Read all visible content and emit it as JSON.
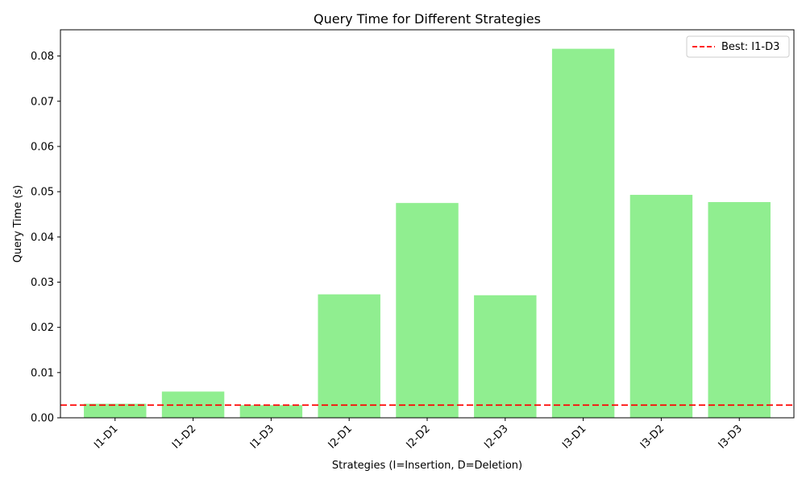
{
  "chart_data": {
    "type": "bar",
    "title": "Query Time for Different Strategies",
    "xlabel": "Strategies (I=Insertion, D=Deletion)",
    "ylabel": "Query Time (s)",
    "categories": [
      "I1-D1",
      "I1-D2",
      "I1-D3",
      "I2-D1",
      "I2-D2",
      "I2-D3",
      "I3-D1",
      "I3-D2",
      "I3-D3"
    ],
    "values": [
      0.0031,
      0.0058,
      0.0028,
      0.0273,
      0.0475,
      0.0271,
      0.0816,
      0.0493,
      0.0477
    ],
    "ylim": [
      0,
      0.0858
    ],
    "yticks": [
      0.0,
      0.01,
      0.02,
      0.03,
      0.04,
      0.05,
      0.06,
      0.07,
      0.08
    ],
    "ytick_labels": [
      "0.00",
      "0.01",
      "0.02",
      "0.03",
      "0.04",
      "0.05",
      "0.06",
      "0.07",
      "0.08"
    ],
    "reference_line": {
      "value": 0.0028,
      "label": "Best: I1-D3",
      "style": "dashed"
    },
    "legend": {
      "placement": "top-right",
      "entries": [
        "Best: I1-D3"
      ]
    },
    "grid": false,
    "colors": {
      "bar": "#90ee90",
      "reference_line": "#ff0000",
      "axis": "#000000"
    }
  }
}
